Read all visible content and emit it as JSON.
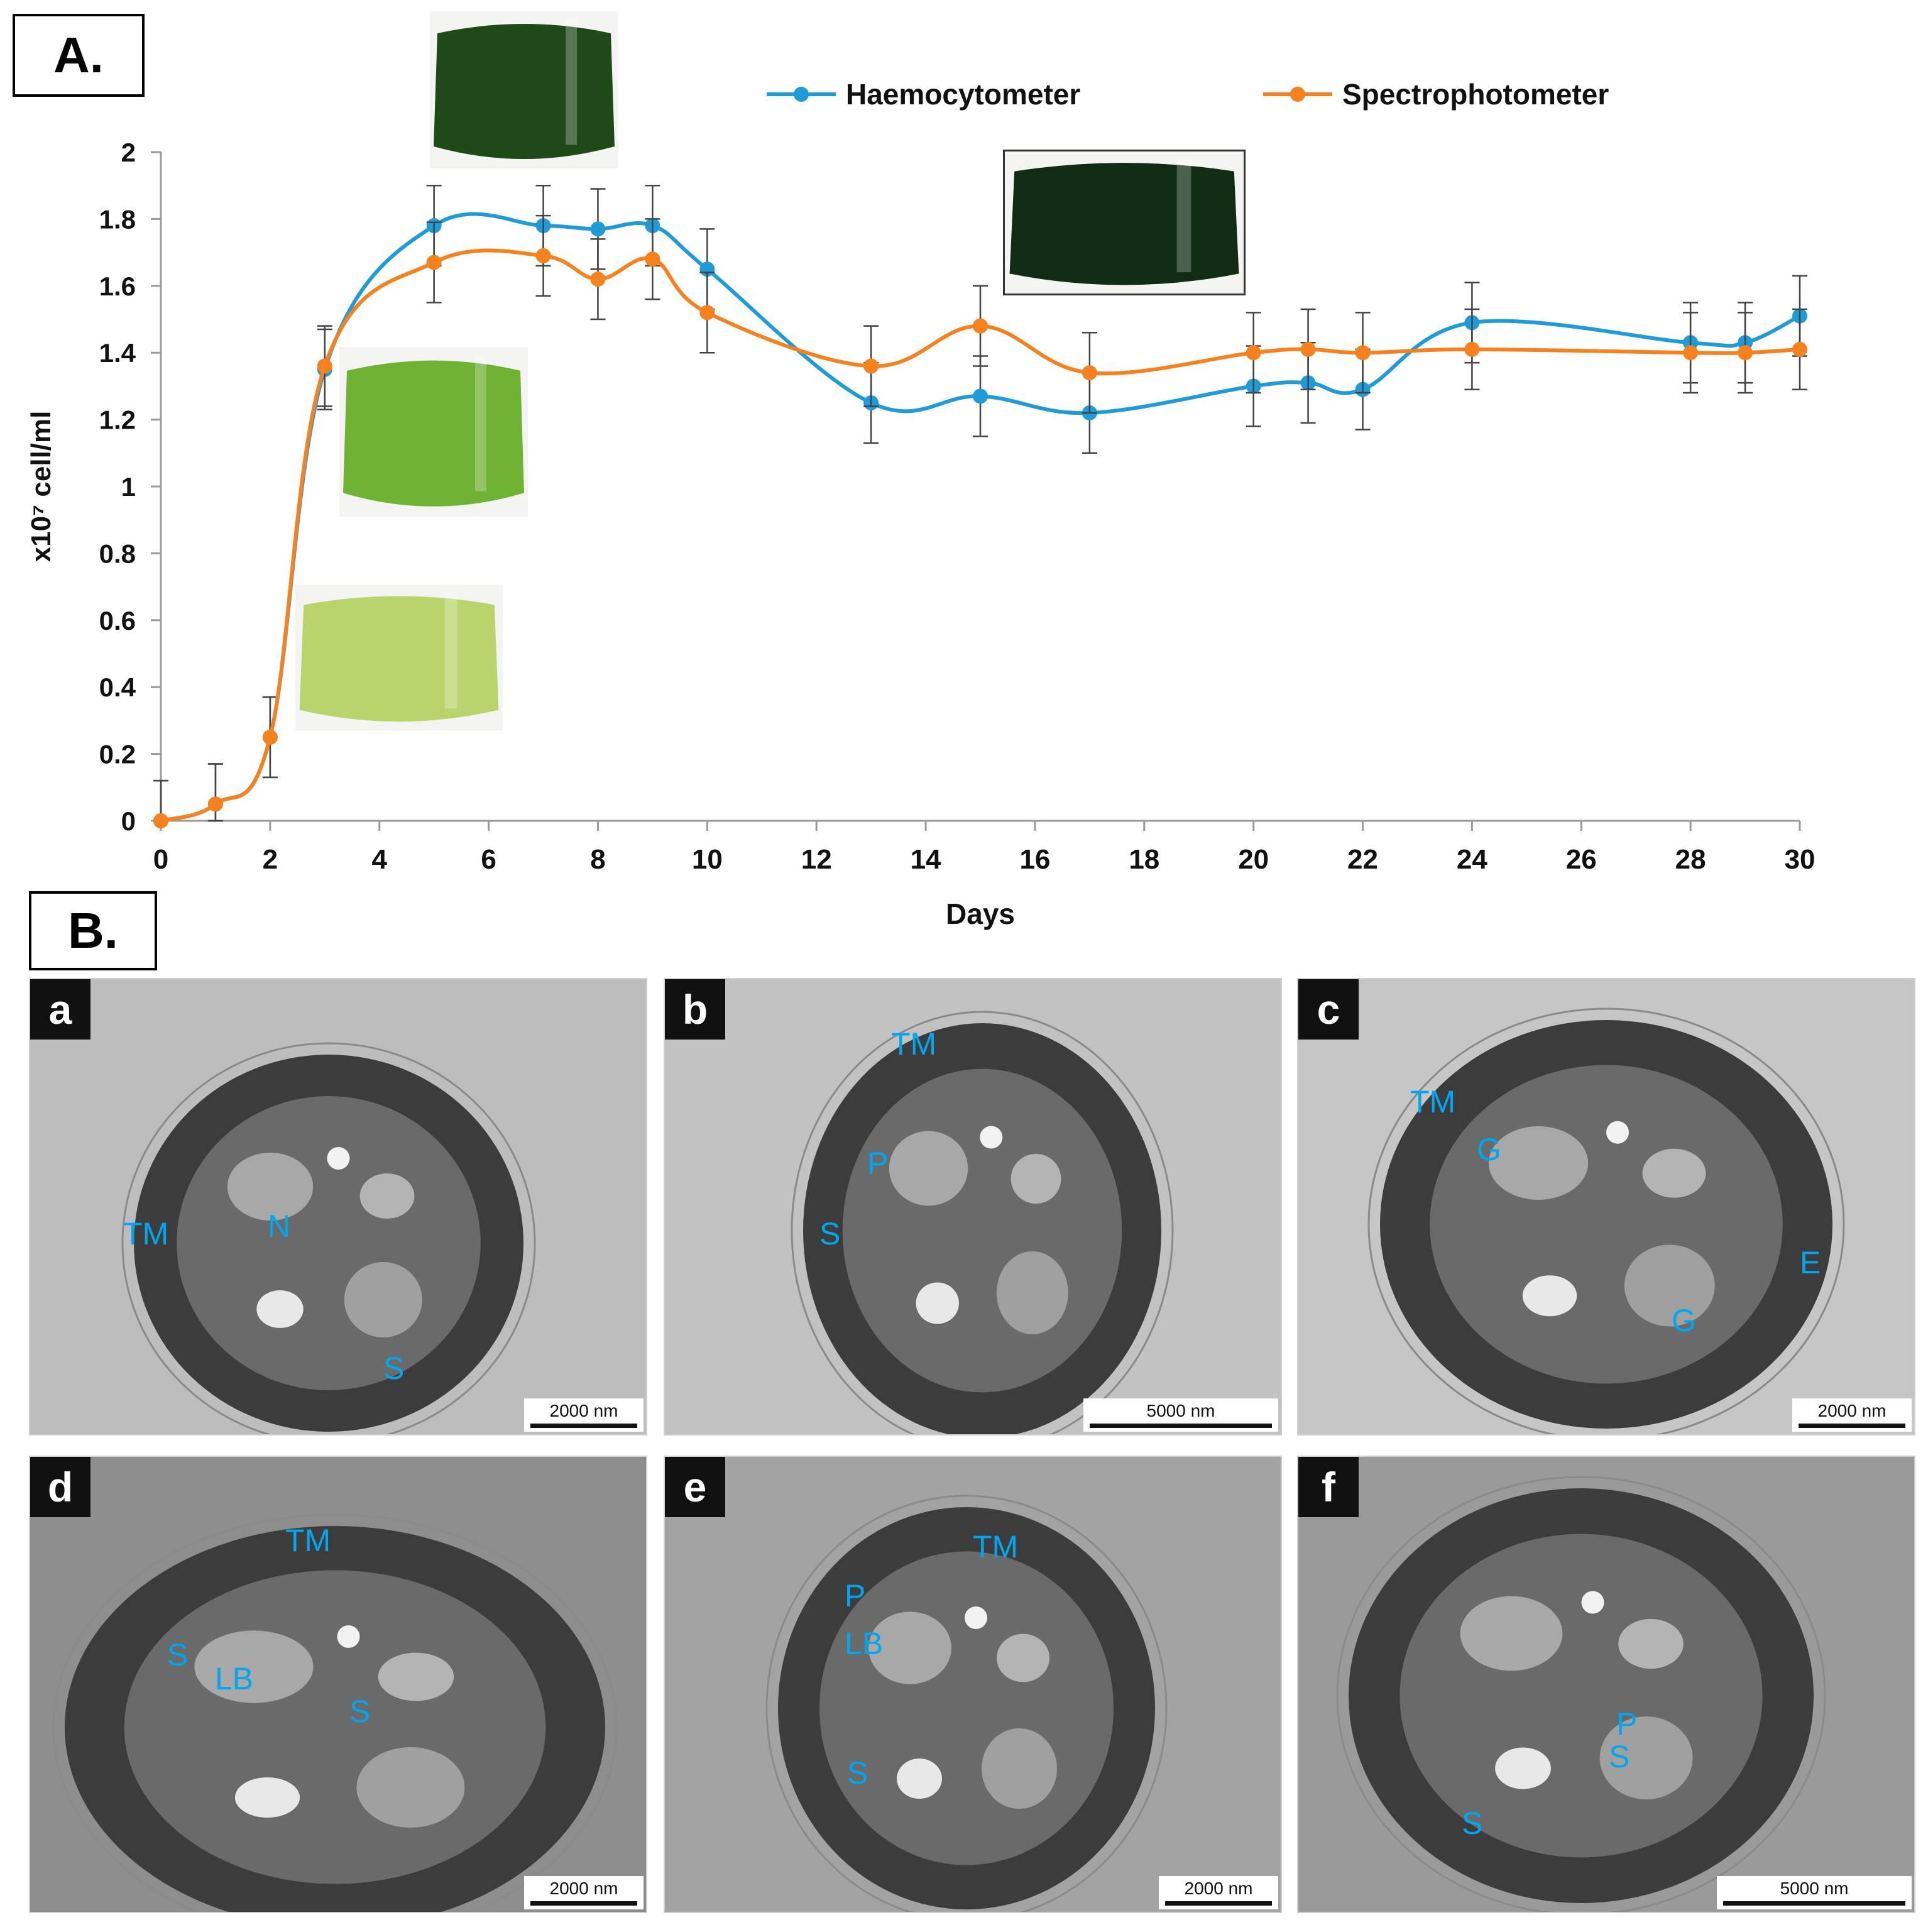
{
  "panel_a": {
    "label": "A."
  },
  "panel_b": {
    "label": "B."
  },
  "chart_data": {
    "type": "line",
    "title": "",
    "xlabel": "Days",
    "ylabel": "x10⁷ cell/ml",
    "xlim": [
      0,
      30
    ],
    "ylim": [
      0,
      2
    ],
    "xticks": [
      0,
      2,
      4,
      6,
      8,
      10,
      12,
      14,
      16,
      18,
      20,
      22,
      24,
      26,
      28,
      30
    ],
    "yticks": [
      0,
      0.2,
      0.4,
      0.6,
      0.8,
      1,
      1.2,
      1.4,
      1.6,
      1.8,
      2
    ],
    "ytick_labels": [
      "0",
      "0.2",
      "0.4",
      "0.6",
      "0.8",
      "1",
      "1.2",
      "1.4",
      "1.6",
      "1.8",
      "2"
    ],
    "grid": false,
    "legend_position": "top",
    "x": [
      0,
      1,
      2,
      3,
      5,
      7,
      8,
      9,
      10,
      13,
      15,
      17,
      20,
      21,
      22,
      24,
      28,
      29,
      30
    ],
    "series": [
      {
        "name": "Haemocytometer",
        "color": "#1f9bd7",
        "values": [
          0,
          0.05,
          0.25,
          1.35,
          1.78,
          1.78,
          1.77,
          1.78,
          1.65,
          1.25,
          1.27,
          1.22,
          1.3,
          1.31,
          1.29,
          1.49,
          1.43,
          1.43,
          1.51
        ],
        "error": [
          0.12,
          0.12,
          0.12,
          0.12,
          0.12,
          0.12,
          0.12,
          0.12,
          0.12,
          0.12,
          0.12,
          0.12,
          0.12,
          0.12,
          0.12,
          0.12,
          0.12,
          0.12,
          0.12
        ]
      },
      {
        "name": "Spectrophotometer",
        "color": "#f5821f",
        "values": [
          0,
          0.05,
          0.25,
          1.36,
          1.67,
          1.69,
          1.62,
          1.68,
          1.52,
          1.36,
          1.48,
          1.34,
          1.4,
          1.41,
          1.4,
          1.41,
          1.4,
          1.4,
          1.41
        ],
        "error": [
          0.12,
          0.12,
          0.12,
          0.12,
          0.12,
          0.12,
          0.12,
          0.12,
          0.12,
          0.12,
          0.12,
          0.12,
          0.12,
          0.12,
          0.12,
          0.12,
          0.12,
          0.12,
          0.12
        ]
      }
    ]
  },
  "flask_images": [
    {
      "name": "flask-day2",
      "color": "#b9d46a"
    },
    {
      "name": "flask-day3",
      "color": "#6fb234"
    },
    {
      "name": "flask-day6",
      "color": "#1e4a18"
    },
    {
      "name": "flask-day15",
      "color": "#102c12"
    }
  ],
  "tem_panels": [
    {
      "letter": "a",
      "scale": "2000 nm",
      "bg": "#bdbdbd",
      "tags": [
        {
          "text": "TM"
        },
        {
          "text": "N"
        },
        {
          "text": "S"
        }
      ]
    },
    {
      "letter": "b",
      "scale": "5000 nm",
      "bg": "#c2c2c2",
      "tags": [
        {
          "text": "TM"
        },
        {
          "text": "P"
        },
        {
          "text": "S"
        }
      ]
    },
    {
      "letter": "c",
      "scale": "2000 nm",
      "bg": "#c6c6c6",
      "tags": [
        {
          "text": "TM"
        },
        {
          "text": "G"
        },
        {
          "text": "E"
        },
        {
          "text": "G"
        }
      ]
    },
    {
      "letter": "d",
      "scale": "2000 nm",
      "bg": "#8e8e8e",
      "tags": [
        {
          "text": "TM"
        },
        {
          "text": "S"
        },
        {
          "text": "LB"
        },
        {
          "text": "S"
        }
      ]
    },
    {
      "letter": "e",
      "scale": "2000 nm",
      "bg": "#a3a3a3",
      "tags": [
        {
          "text": "TM"
        },
        {
          "text": "P"
        },
        {
          "text": "LB"
        },
        {
          "text": "S"
        }
      ]
    },
    {
      "letter": "f",
      "scale": "5000 nm",
      "bg": "#9a9a9a",
      "tags": [
        {
          "text": "P"
        },
        {
          "text": "S"
        },
        {
          "text": "S"
        }
      ]
    }
  ]
}
